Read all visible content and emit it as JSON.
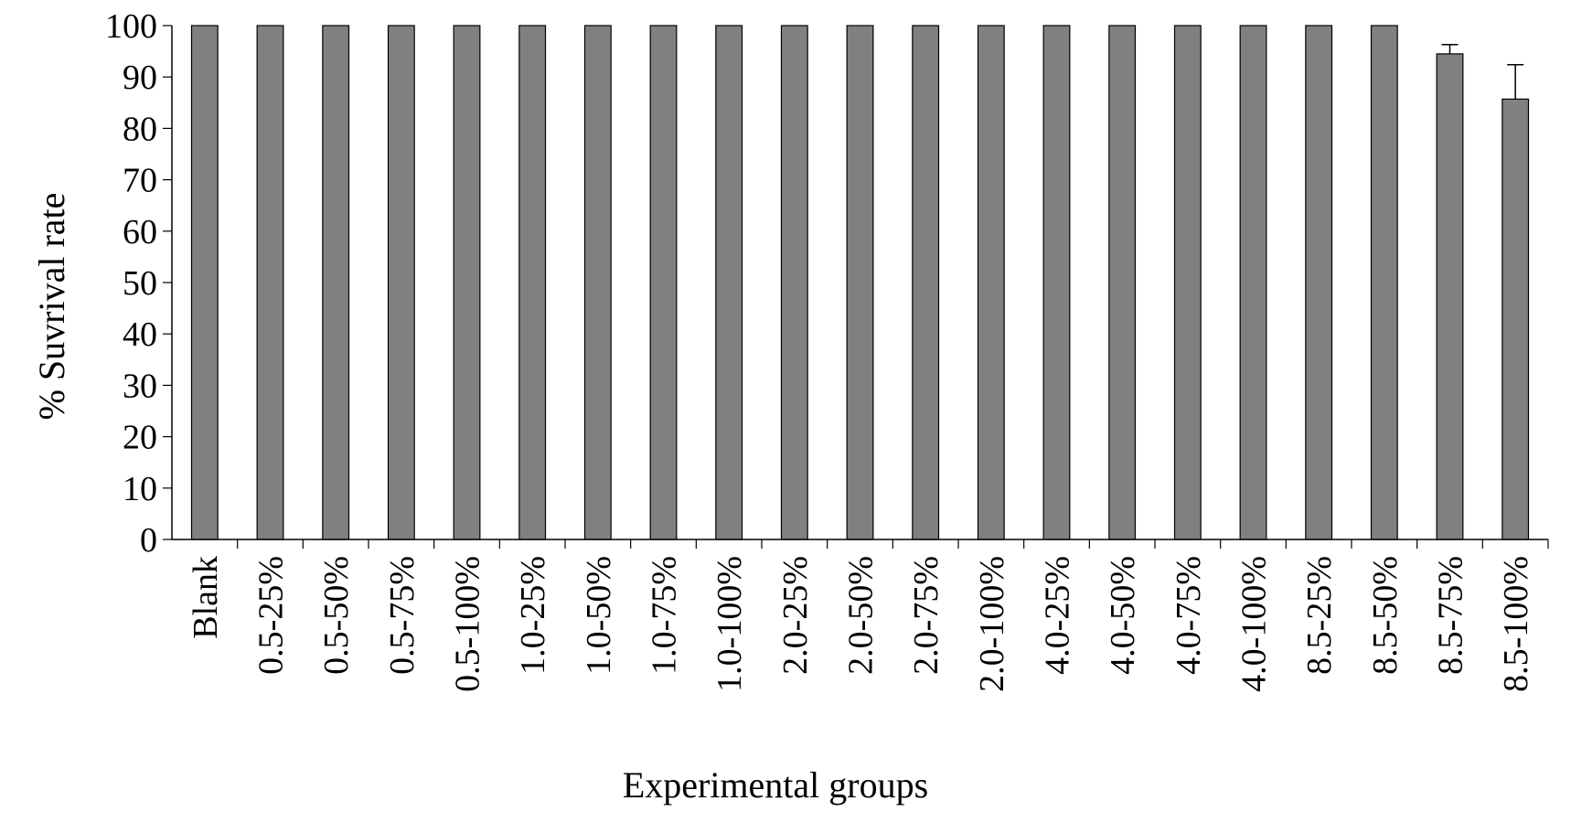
{
  "chart_data": {
    "type": "bar",
    "title": "",
    "xlabel": "Experimental groups",
    "ylabel": "% Suvrival rate",
    "ylim": [
      0,
      100
    ],
    "yticks": [
      0,
      10,
      20,
      30,
      40,
      50,
      60,
      70,
      80,
      90,
      100
    ],
    "grid": false,
    "legend": "none",
    "bar_color": "#808080",
    "categories": [
      "Blank",
      "0.5-25%",
      "0.5-50%",
      "0.5-75%",
      "0.5-100%",
      "1.0-25%",
      "1.0-50%",
      "1.0-75%",
      "1.0-100%",
      "2.0-25%",
      "2.0-50%",
      "2.0-75%",
      "2.0-100%",
      "4.0-25%",
      "4.0-50%",
      "4.0-75%",
      "4.0-100%",
      "8.5-25%",
      "8.5-50%",
      "8.5-75%",
      "8.5-100%"
    ],
    "values": [
      100,
      100,
      100,
      100,
      100,
      100,
      100,
      100,
      100,
      100,
      100,
      100,
      100,
      100,
      100,
      100,
      100,
      100,
      100,
      94.5,
      85.7
    ],
    "error_bars": [
      0,
      0,
      0,
      0,
      0,
      0,
      0,
      0,
      0,
      0,
      0,
      0,
      0,
      0,
      0,
      0,
      0,
      0,
      0,
      1.8,
      6.7
    ]
  }
}
